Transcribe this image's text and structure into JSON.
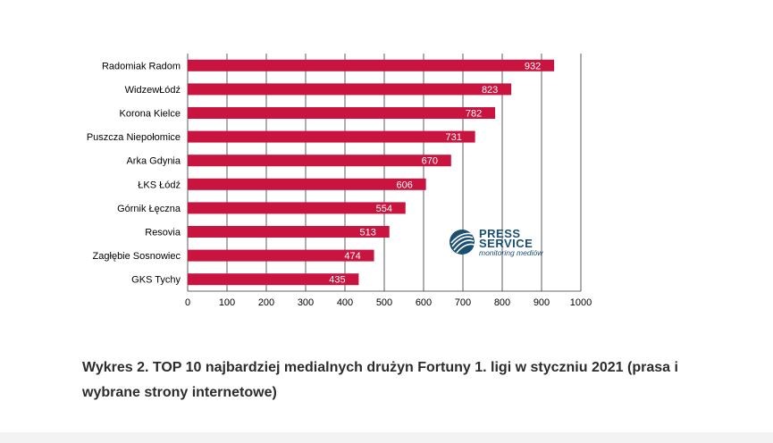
{
  "chart_data": {
    "type": "bar",
    "orientation": "horizontal",
    "categories": [
      "Radomiak Radom",
      "WidzewŁódź",
      "Korona Kielce",
      "Puszcza Niepołomice",
      "Arka Gdynia",
      "ŁKS Łódź",
      "Górnik Łęczna",
      "Resovia",
      "Zagłębie Sosnowiec",
      "GKS Tychy"
    ],
    "values": [
      932,
      823,
      782,
      731,
      670,
      606,
      554,
      513,
      474,
      435
    ],
    "xlim": [
      0,
      1000
    ],
    "x_ticks": [
      0,
      100,
      200,
      300,
      400,
      500,
      600,
      700,
      800,
      900,
      1000
    ],
    "grid": "vertical",
    "bar_color": "#c8143f",
    "data_labels": true,
    "legend": "none"
  },
  "logo": {
    "main_line1": "PRESS",
    "main_line2": "SERVICE",
    "sub": "monitoring mediów",
    "color": "#1b4f72"
  },
  "caption": "Wykres 2. TOP 10 najbardziej medialnych drużyn Fortuny 1. ligi w styczniu 2021 (prasa i wybrane strony internetowe)"
}
